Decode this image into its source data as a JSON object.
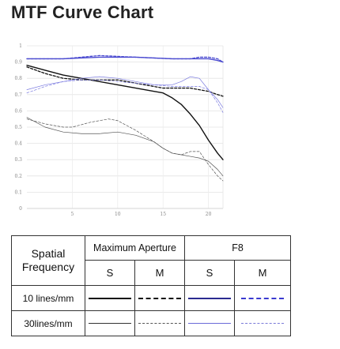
{
  "title": "MTF Curve Chart",
  "chart_data": {
    "type": "line",
    "title": "MTF Curve Chart",
    "xlabel": "",
    "ylabel": "",
    "xlim": [
      0,
      21.6
    ],
    "ylim": [
      0,
      1
    ],
    "x_ticks": [
      "5",
      "10",
      "15",
      "20"
    ],
    "y_ticks": [
      "0",
      "0.1",
      "0.2",
      "0.3",
      "0.4",
      "0.5",
      "0.6",
      "0.7",
      "0.8",
      "0.9",
      "1"
    ],
    "grid": true,
    "colors": {
      "max_aperture": "#111111",
      "f8": "#4a4ad0"
    },
    "series": [
      {
        "group": "max_aperture",
        "freq": "10 lines/mm",
        "dir": "S",
        "style": "solid-thick",
        "x": [
          0,
          2,
          4,
          6,
          8,
          10,
          12,
          14,
          15,
          16,
          17,
          18,
          19,
          20,
          21,
          21.6
        ],
        "y": [
          0.88,
          0.85,
          0.82,
          0.8,
          0.78,
          0.76,
          0.74,
          0.72,
          0.71,
          0.68,
          0.64,
          0.58,
          0.51,
          0.42,
          0.34,
          0.3
        ]
      },
      {
        "group": "max_aperture",
        "freq": "10 lines/mm",
        "dir": "M",
        "style": "dashed-thick",
        "x": [
          0,
          2,
          4,
          6,
          8,
          10,
          12,
          14,
          15,
          16,
          17,
          18,
          19,
          20,
          21,
          21.6
        ],
        "y": [
          0.87,
          0.83,
          0.8,
          0.79,
          0.79,
          0.79,
          0.77,
          0.75,
          0.74,
          0.74,
          0.74,
          0.74,
          0.73,
          0.72,
          0.7,
          0.69
        ]
      },
      {
        "group": "max_aperture",
        "freq": "30lines/mm",
        "dir": "S",
        "style": "solid-thin",
        "x": [
          0,
          2,
          4,
          6,
          8,
          10,
          12,
          14,
          15,
          16,
          17,
          18,
          19,
          20,
          21,
          21.6
        ],
        "y": [
          0.56,
          0.5,
          0.47,
          0.46,
          0.46,
          0.47,
          0.45,
          0.41,
          0.37,
          0.34,
          0.33,
          0.32,
          0.31,
          0.29,
          0.24,
          0.2
        ]
      },
      {
        "group": "max_aperture",
        "freq": "30lines/mm",
        "dir": "M",
        "style": "dashed-thin",
        "x": [
          0,
          2,
          4,
          5,
          7,
          9,
          10,
          12,
          14,
          15,
          16,
          17,
          18,
          19,
          20,
          21,
          21.6
        ],
        "y": [
          0.55,
          0.52,
          0.5,
          0.5,
          0.53,
          0.55,
          0.54,
          0.48,
          0.41,
          0.37,
          0.34,
          0.33,
          0.35,
          0.35,
          0.27,
          0.2,
          0.17
        ]
      },
      {
        "group": "f8",
        "freq": "10 lines/mm",
        "dir": "S",
        "style": "solid-thick",
        "x": [
          0,
          4,
          8,
          12,
          16,
          18,
          19,
          20,
          21,
          21.6
        ],
        "y": [
          0.92,
          0.92,
          0.93,
          0.93,
          0.92,
          0.92,
          0.92,
          0.92,
          0.91,
          0.9
        ]
      },
      {
        "group": "f8",
        "freq": "10 lines/mm",
        "dir": "M",
        "style": "dashed-thick",
        "x": [
          0,
          4,
          8,
          12,
          16,
          18,
          19,
          20,
          21,
          21.6
        ],
        "y": [
          0.92,
          0.92,
          0.94,
          0.93,
          0.92,
          0.92,
          0.93,
          0.93,
          0.92,
          0.9
        ]
      },
      {
        "group": "f8",
        "freq": "30lines/mm",
        "dir": "S",
        "style": "solid-thin",
        "x": [
          0,
          2,
          4,
          6,
          8,
          10,
          12,
          14,
          16,
          17,
          18,
          19,
          20,
          21,
          21.6
        ],
        "y": [
          0.73,
          0.76,
          0.78,
          0.8,
          0.81,
          0.8,
          0.78,
          0.76,
          0.76,
          0.78,
          0.81,
          0.8,
          0.73,
          0.67,
          0.62
        ]
      },
      {
        "group": "f8",
        "freq": "30lines/mm",
        "dir": "M",
        "style": "dashed-thin",
        "x": [
          0,
          2,
          4,
          6,
          8,
          10,
          12,
          14,
          16,
          18,
          19,
          20,
          21,
          21.6
        ],
        "y": [
          0.71,
          0.75,
          0.78,
          0.79,
          0.79,
          0.78,
          0.77,
          0.76,
          0.75,
          0.75,
          0.75,
          0.73,
          0.65,
          0.59
        ]
      }
    ]
  },
  "legend": {
    "spatial_frequency": [
      "Spatial",
      "Frequency"
    ],
    "maximum_aperture": "Maximum Aperture",
    "f8": "F8",
    "s": "S",
    "m": "M",
    "row_10": "10 lines/mm",
    "row_30": "30lines/mm"
  }
}
